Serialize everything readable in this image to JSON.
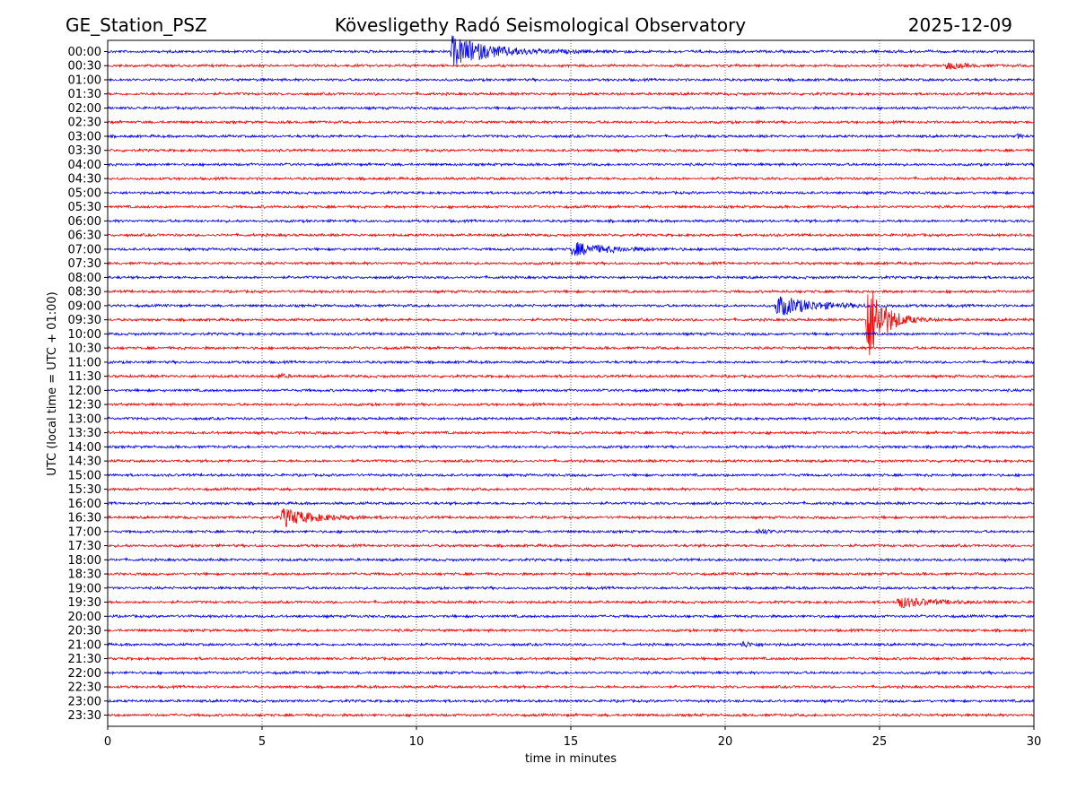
{
  "chart_data": {
    "type": "line",
    "subtype": "helicorder",
    "title_left": "GE_Station_PSZ",
    "title": "Kövesligethy Radó Seismological Observatory",
    "title_right": "2025-12-09",
    "xlabel": "time in minutes",
    "ylabel": "UTC (local time = UTC + 01:00)",
    "xlim": [
      0,
      30
    ],
    "xticks": [
      0,
      5,
      10,
      15,
      20,
      25,
      30
    ],
    "grid": "vertical dotted",
    "row_labels": [
      "00:00",
      "00:30",
      "01:00",
      "01:30",
      "02:00",
      "02:30",
      "03:00",
      "03:30",
      "04:00",
      "04:30",
      "05:00",
      "05:30",
      "06:00",
      "06:30",
      "07:00",
      "07:30",
      "08:00",
      "08:30",
      "09:00",
      "09:30",
      "10:00",
      "10:30",
      "11:00",
      "11:30",
      "12:00",
      "12:30",
      "13:00",
      "13:30",
      "14:00",
      "14:30",
      "15:00",
      "15:30",
      "16:00",
      "16:30",
      "17:00",
      "17:30",
      "18:00",
      "18:30",
      "19:00",
      "19:30",
      "20:00",
      "20:30",
      "21:00",
      "21:30",
      "22:00",
      "22:30",
      "23:00",
      "23:30"
    ],
    "trace_colors": [
      "#0000ff",
      "#ff0000"
    ],
    "noise_level": 0.08,
    "events": [
      {
        "row": "00:00",
        "start_min": 11.1,
        "amplitude": 1.1,
        "duration_min": 4.5
      },
      {
        "row": "00:30",
        "start_min": 27.1,
        "amplitude": 0.3,
        "duration_min": 1.8
      },
      {
        "row": "03:00",
        "start_min": 29.4,
        "amplitude": 0.2,
        "duration_min": 0.6
      },
      {
        "row": "07:00",
        "start_min": 15.0,
        "amplitude": 0.5,
        "duration_min": 4.0
      },
      {
        "row": "09:00",
        "start_min": 21.6,
        "amplitude": 0.8,
        "duration_min": 4.0
      },
      {
        "row": "09:30",
        "start_min": 24.55,
        "amplitude": 3.6,
        "duration_min": 1.8
      },
      {
        "row": "11:30",
        "start_min": 5.5,
        "amplitude": 0.2,
        "duration_min": 0.9
      },
      {
        "row": "16:30",
        "start_min": 5.6,
        "amplitude": 0.7,
        "duration_min": 3.5
      },
      {
        "row": "17:00",
        "start_min": 21.0,
        "amplitude": 0.2,
        "duration_min": 1.5
      },
      {
        "row": "19:30",
        "start_min": 25.5,
        "amplitude": 0.45,
        "duration_min": 3.5
      },
      {
        "row": "21:00",
        "start_min": 20.5,
        "amplitude": 0.25,
        "duration_min": 1.2
      }
    ]
  }
}
